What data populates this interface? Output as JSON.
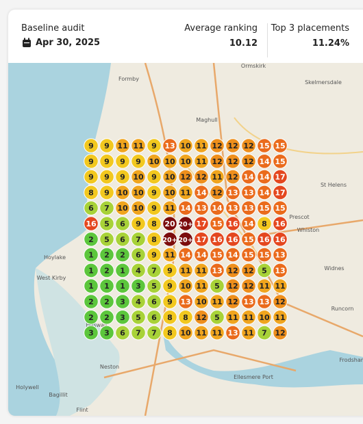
{
  "header": {
    "title": "Baseline audit",
    "date": "Apr 30, 2025"
  },
  "metrics": [
    {
      "label": "Average ranking",
      "value": "10.12"
    },
    {
      "label": "Top 3 placements",
      "value": "11.24%"
    }
  ],
  "grid": {
    "rows": [
      [
        9,
        9,
        11,
        11,
        9,
        13,
        10,
        11,
        12,
        12,
        12,
        15,
        15
      ],
      [
        9,
        9,
        9,
        9,
        10,
        10,
        10,
        11,
        12,
        12,
        12,
        14,
        15
      ],
      [
        9,
        9,
        9,
        10,
        9,
        10,
        12,
        12,
        11,
        12,
        14,
        14,
        17
      ],
      [
        8,
        9,
        10,
        10,
        9,
        10,
        11,
        14,
        12,
        13,
        13,
        14,
        17
      ],
      [
        6,
        7,
        10,
        10,
        9,
        11,
        14,
        13,
        14,
        13,
        13,
        15,
        15
      ],
      [
        16,
        5,
        6,
        9,
        8,
        20,
        "20+",
        17,
        15,
        16,
        14,
        8,
        16
      ],
      [
        2,
        5,
        6,
        7,
        8,
        "20+",
        "20+",
        17,
        16,
        16,
        15,
        16,
        16
      ],
      [
        1,
        2,
        2,
        6,
        9,
        11,
        14,
        14,
        15,
        14,
        15,
        15,
        13
      ],
      [
        1,
        2,
        1,
        4,
        7,
        9,
        11,
        11,
        13,
        12,
        12,
        5,
        13
      ],
      [
        1,
        1,
        1,
        3,
        5,
        9,
        10,
        11,
        5,
        12,
        12,
        11,
        11
      ],
      [
        2,
        2,
        3,
        4,
        6,
        9,
        13,
        10,
        11,
        12,
        13,
        13,
        12
      ],
      [
        2,
        2,
        3,
        5,
        6,
        8,
        8,
        12,
        5,
        11,
        11,
        10,
        11
      ],
      [
        3,
        3,
        6,
        7,
        7,
        8,
        10,
        11,
        11,
        13,
        11,
        7,
        12
      ]
    ]
  },
  "map": {
    "labels": [
      "Ormskirk",
      "Formby",
      "Maghull",
      "Skelmersdale",
      "St Helens",
      "Prescot",
      "Whiston",
      "Widnes",
      "Runcorn",
      "Hoylake",
      "West Kirby",
      "Heswall",
      "Neston",
      "Ellesmere Port",
      "Holywell",
      "Bagillit",
      "Flint",
      "Frodsham"
    ]
  }
}
